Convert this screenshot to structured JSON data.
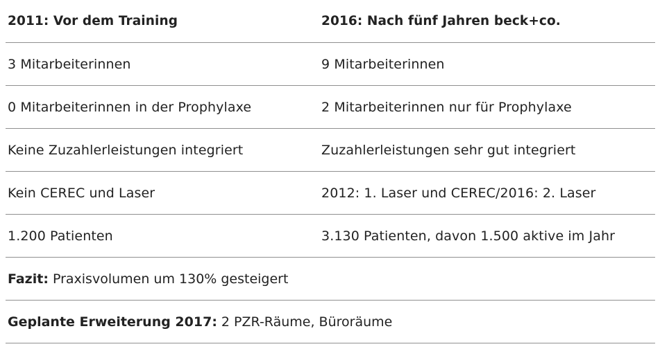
{
  "header": {
    "left": "2011: Vor dem Training",
    "right": "2016: Nach fünf Jahren beck+co."
  },
  "rows": [
    {
      "left": "3 Mitarbeiterinnen",
      "right": "9 Mitarbeiterinnen"
    },
    {
      "left": "0 Mitarbeiterinnen in der Prophylaxe",
      "right": "2 Mitarbeiterinnen nur für Prophylaxe"
    },
    {
      "left": "Keine Zuzahlerleistungen integriert",
      "right": "Zuzahlerleistungen sehr gut integriert"
    },
    {
      "left": "Kein CEREC und Laser",
      "right": "2012: 1. Laser und CEREC/2016: 2. Laser"
    },
    {
      "left": "1.200 Patienten",
      "right": "3.130 Patienten, davon 1.500 aktive im Jahr"
    }
  ],
  "summary": [
    {
      "label": "Fazit:",
      "text": "Praxisvolumen um 130% gesteigert"
    },
    {
      "label": "Geplante Erweiterung 2017:",
      "text": "2 PZR-Räume, Büroräume"
    }
  ]
}
